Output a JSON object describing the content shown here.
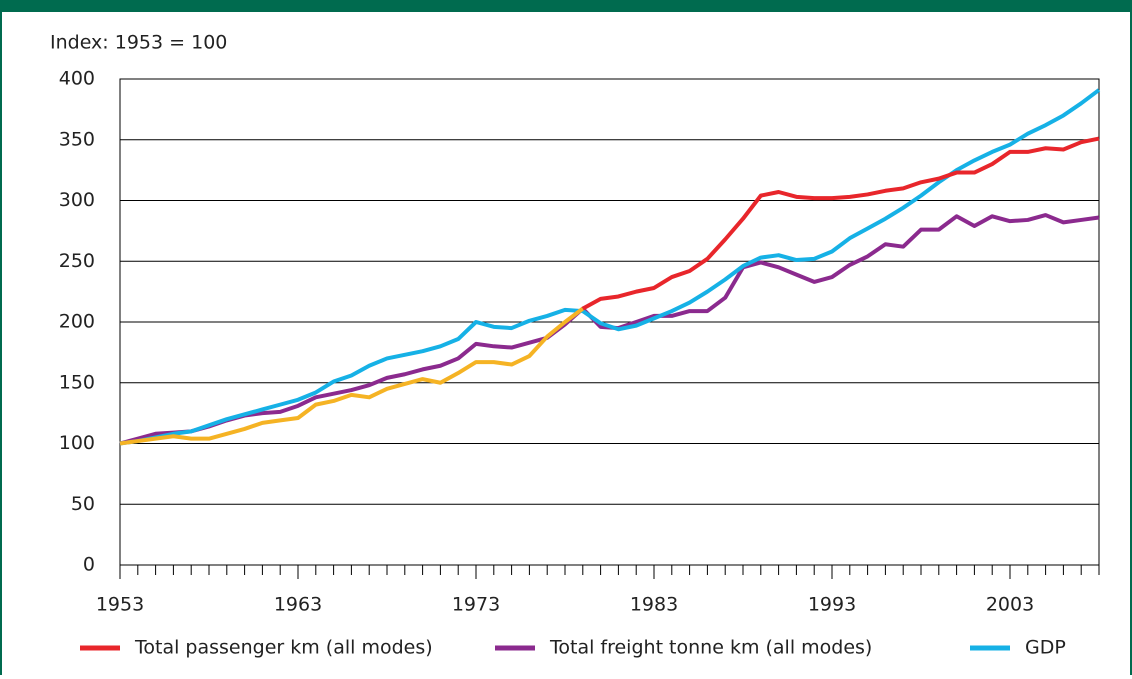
{
  "chart_data": {
    "type": "line",
    "subtitle": "Index: 1953 = 100",
    "xlim": [
      1953,
      2008
    ],
    "xticks": [
      1953,
      1963,
      1973,
      1983,
      1993,
      2003
    ],
    "minor_xtick_step": 1,
    "ylim": [
      0,
      400
    ],
    "yticks": [
      0,
      50,
      100,
      150,
      200,
      250,
      300,
      350,
      400
    ],
    "grid": true,
    "x": [
      1953,
      1954,
      1955,
      1956,
      1957,
      1958,
      1959,
      1960,
      1961,
      1962,
      1963,
      1964,
      1965,
      1966,
      1967,
      1968,
      1969,
      1970,
      1971,
      1972,
      1973,
      1974,
      1975,
      1976,
      1977,
      1978,
      1979,
      1980,
      1981,
      1982,
      1983,
      1984,
      1985,
      1986,
      1987,
      1988,
      1989,
      1990,
      1991,
      1992,
      1993,
      1994,
      1995,
      1996,
      1997,
      1998,
      1999,
      2000,
      2001,
      2002,
      2003,
      2004,
      2005,
      2006,
      2007,
      2008
    ],
    "legend": "bottom",
    "series": [
      {
        "name": "Total passenger km (all modes)",
        "color": "#e8262b",
        "early_color": "#f5b324",
        "early_until": 1979,
        "values": [
          100,
          102,
          104,
          106,
          104,
          104,
          108,
          112,
          117,
          119,
          121,
          132,
          135,
          140,
          138,
          145,
          149,
          153,
          150,
          158,
          167,
          167,
          165,
          172,
          188,
          200,
          211,
          219,
          221,
          225,
          228,
          237,
          242,
          252,
          268,
          285,
          304,
          307,
          303,
          302,
          302,
          303,
          305,
          308,
          310,
          315,
          318,
          323,
          323,
          330,
          340,
          340,
          343,
          342,
          348,
          351
        ]
      },
      {
        "name": "Total freight tonne km (all modes)",
        "color": "#8b2a8e",
        "values": [
          100,
          104,
          108,
          109,
          110,
          114,
          119,
          123,
          125,
          126,
          131,
          138,
          141,
          144,
          148,
          154,
          157,
          161,
          164,
          170,
          182,
          180,
          179,
          183,
          187,
          198,
          211,
          196,
          195,
          200,
          205,
          205,
          209,
          209,
          220,
          245,
          249,
          245,
          239,
          233,
          237,
          247,
          254,
          264,
          262,
          276,
          276,
          287,
          279,
          287,
          283,
          284,
          288,
          282,
          284,
          286
        ]
      },
      {
        "name": "GDP",
        "color": "#16b1e6",
        "values": [
          100,
          102,
          105,
          108,
          110,
          115,
          120,
          124,
          128,
          132,
          136,
          142,
          151,
          156,
          164,
          170,
          173,
          176,
          180,
          186,
          200,
          196,
          195,
          201,
          205,
          210,
          209,
          199,
          194,
          197,
          203,
          209,
          216,
          225,
          235,
          246,
          253,
          255,
          251,
          252,
          258,
          269,
          277,
          285,
          294,
          304,
          315,
          325,
          333,
          340,
          346,
          355,
          362,
          370,
          380,
          391
        ]
      }
    ]
  }
}
